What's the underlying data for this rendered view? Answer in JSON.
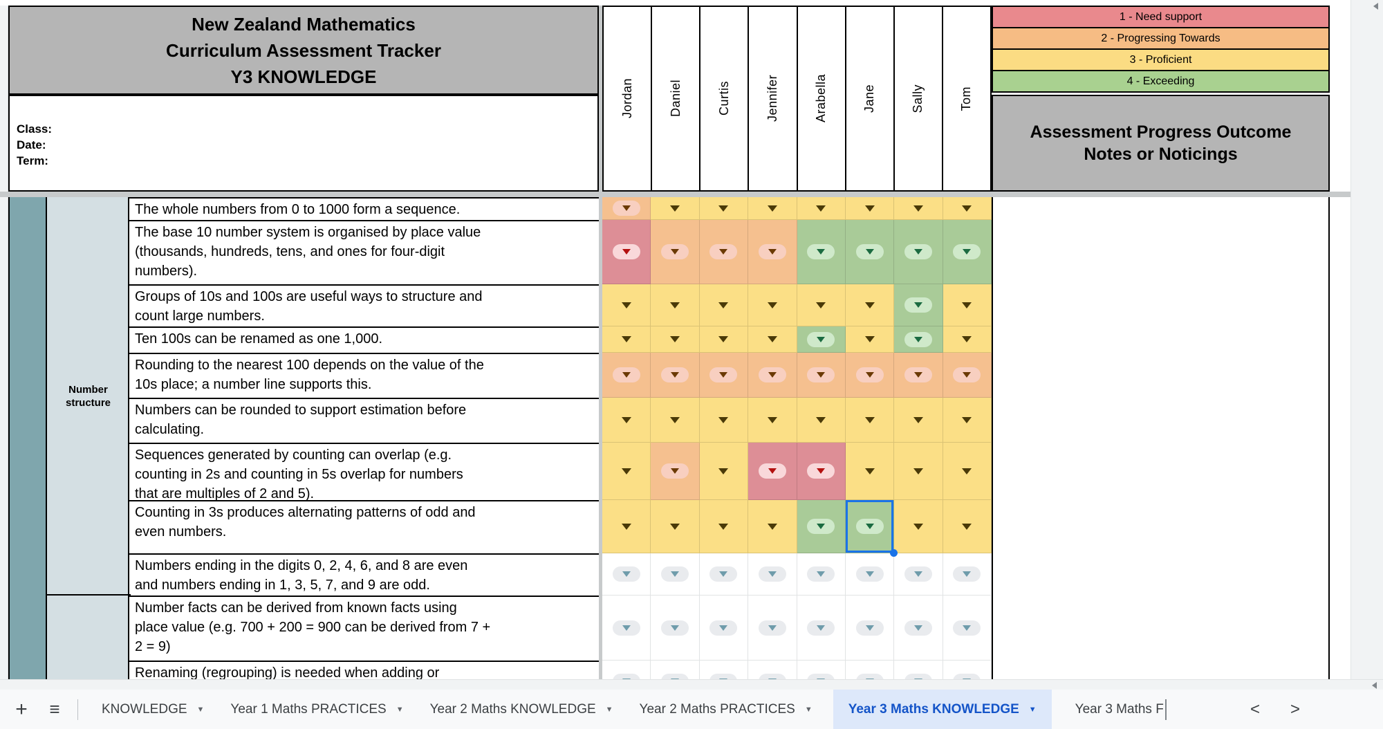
{
  "header": {
    "title": "New Zealand Mathematics\nCurriculum Assessment Tracker\nY3 KNOWLEDGE",
    "meta": "Class:\nDate:\nTerm:",
    "students": [
      "Jordan",
      "Daniel",
      "Curtis",
      "Jennifer",
      "Arabella",
      "Jane",
      "Sally",
      "Tom"
    ],
    "legend": [
      {
        "label": "1 - Need support",
        "color": "#e9898d"
      },
      {
        "label": "2 - Progressing Towards",
        "color": "#f6bc84"
      },
      {
        "label": "3 - Proficient",
        "color": "#fbdc83"
      },
      {
        "label": "4 - Exceeding",
        "color": "#a9d190"
      }
    ],
    "notes_title": "Assessment Progress Outcome\nNotes or Noticings"
  },
  "categories": [
    {
      "label": "Number\nstructure"
    },
    {
      "label": ""
    }
  ],
  "rows": [
    {
      "statement": "The whole numbers from 0 to 1000 form a sequence.",
      "cells": [
        "orange-pill",
        "yellow",
        "yellow",
        "yellow",
        "yellow",
        "yellow",
        "yellow",
        "yellow"
      ]
    },
    {
      "statement": "The base 10 number system is organised by place value\n(thousands, hundreds, tens, and ones for four-digit\nnumbers).",
      "cells": [
        "red-pill",
        "orange-pill",
        "orange-pill",
        "orange-pill",
        "green-pill",
        "green-pill",
        "green-pill",
        "green-pill"
      ]
    },
    {
      "statement": "Groups of 10s and 100s are useful ways to structure and\ncount large numbers.",
      "cells": [
        "yellow",
        "yellow",
        "yellow",
        "yellow",
        "yellow",
        "yellow",
        "green-pill",
        "yellow"
      ]
    },
    {
      "statement": "Ten 100s can be renamed as one 1,000.",
      "cells": [
        "yellow",
        "yellow",
        "yellow",
        "yellow",
        "green-pill",
        "yellow",
        "green-pill",
        "yellow"
      ]
    },
    {
      "statement": "Rounding to the nearest 100 depends on the value of the\n10s place; a number line supports this.",
      "cells": [
        "orange-pill",
        "orange-pill",
        "orange-pill",
        "orange-pill",
        "orange-pill",
        "orange-pill",
        "orange-pill",
        "orange-pill"
      ]
    },
    {
      "statement": "Numbers can be rounded to support estimation before\ncalculating.",
      "cells": [
        "yellow",
        "yellow",
        "yellow",
        "yellow",
        "yellow",
        "yellow",
        "yellow",
        "yellow"
      ]
    },
    {
      "statement": "Sequences generated by counting can overlap (e.g.\ncounting in 2s and counting in 5s overlap for numbers\nthat are multiples of 2 and 5).",
      "cells": [
        "yellow",
        "orange-pill",
        "yellow",
        "red-pill",
        "red-pill",
        "yellow",
        "yellow",
        "yellow"
      ]
    },
    {
      "statement": "Counting in 3s produces alternating patterns of odd and\neven numbers.",
      "cells": [
        "yellow",
        "yellow",
        "yellow",
        "yellow",
        "green-pill",
        "green-pill-selected",
        "yellow",
        "yellow"
      ]
    },
    {
      "statement": "Numbers ending in the digits 0, 2, 4, 6, and 8 are even\nand numbers ending in 1, 3, 5, 7, and 9 are odd.",
      "cells": [
        "none-pill",
        "none-pill",
        "none-pill",
        "none-pill",
        "none-pill",
        "none-pill",
        "none-pill",
        "none-pill"
      ]
    },
    {
      "statement": "Number facts can be derived from known facts using\nplace value (e.g. 700 + 200 = 900 can be derived from 7 +\n2 = 9)",
      "cells": [
        "none-pill",
        "none-pill",
        "none-pill",
        "none-pill",
        "none-pill",
        "none-pill",
        "none-pill",
        "none-pill"
      ]
    },
    {
      "statement": "Renaming (regrouping) is needed when adding or",
      "cells": [
        "none-pill",
        "none-pill",
        "none-pill",
        "none-pill",
        "none-pill",
        "none-pill",
        "none-pill",
        "none-pill"
      ]
    }
  ],
  "tabbar": {
    "tabs": [
      {
        "label": "KNOWLEDGE",
        "has_menu": true,
        "active": false
      },
      {
        "label": "Year 1 Maths PRACTICES",
        "has_menu": true,
        "active": false
      },
      {
        "label": "Year 2 Maths KNOWLEDGE",
        "has_menu": true,
        "active": false
      },
      {
        "label": "Year 2 Maths PRACTICES",
        "has_menu": true,
        "active": false
      },
      {
        "label": "Year 3 Maths KNOWLEDGE",
        "has_menu": true,
        "active": true
      },
      {
        "label": "Year 3 Maths F",
        "has_menu": false,
        "active": false,
        "editing": true
      }
    ],
    "scroll_left": "<",
    "scroll_right": ">"
  },
  "colors": {
    "cell_yellow": "#fbdf86",
    "cell_orange": "#f5c08f",
    "cell_red": "#dd8e96",
    "cell_green": "#a9cb98",
    "pill_on_orange": "#f8cfc0",
    "pill_on_red": "#f9d8da",
    "pill_on_green": "#cfe9ca",
    "pill_on_white": "#e9ebee",
    "tri_olive": "#4a3a08",
    "tri_brown": "#6b3a05",
    "tri_red": "#b3100f",
    "tri_green": "#1b6b41",
    "tri_gray_blue": "#6f9cab",
    "selection_blue": "#1a73e8",
    "header_gray": "#b5b5b5",
    "teal_band": "#7fa6ad",
    "category_band": "#d4dfe3",
    "active_tab_bg": "#dde8fa",
    "active_tab_text": "#1454c8"
  }
}
